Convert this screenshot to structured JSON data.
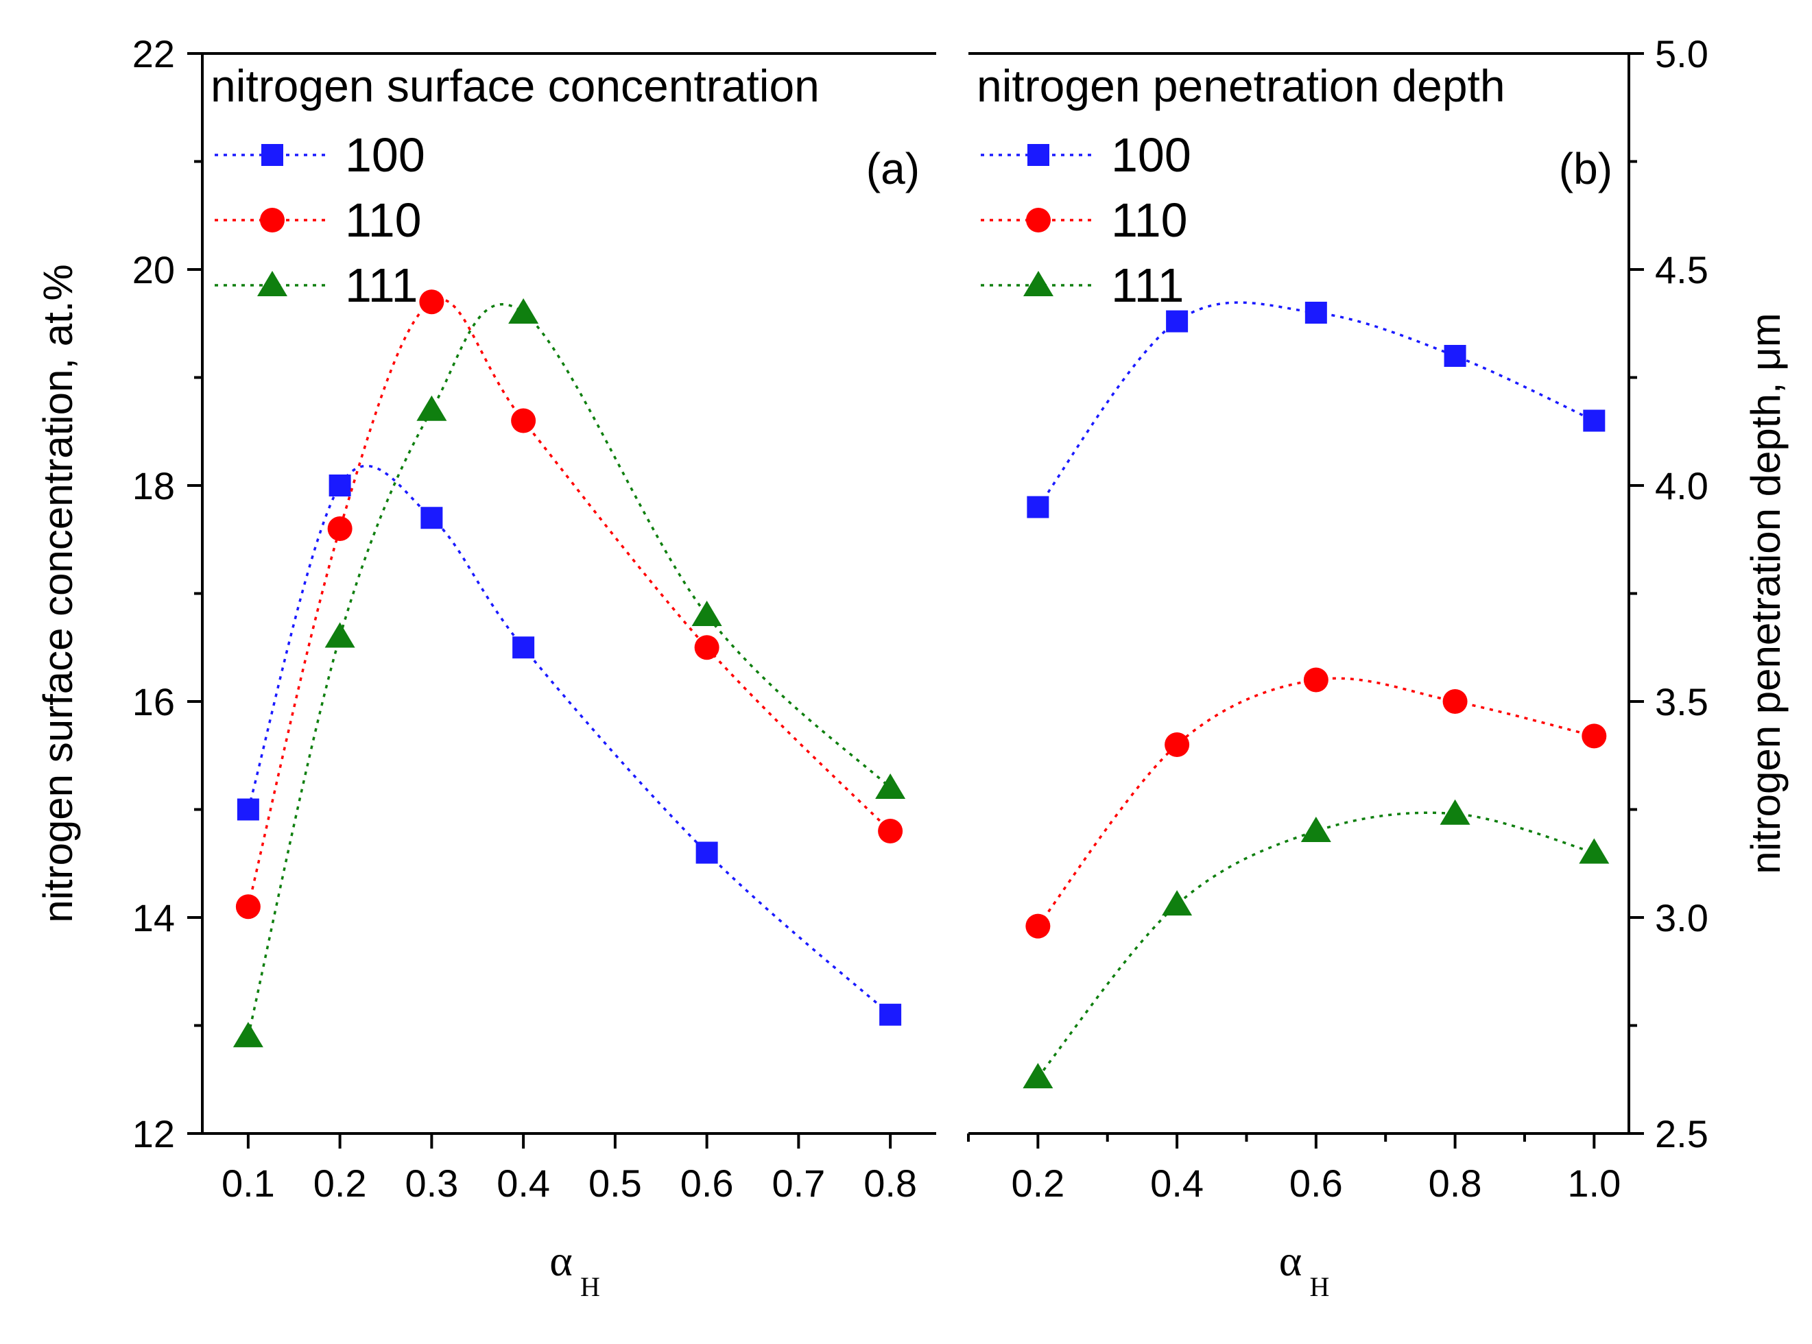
{
  "colors": {
    "s100": "#1a1aff",
    "s110": "#ff0000",
    "s111": "#0f7f0f",
    "axes": "#000000"
  },
  "chart_data": [
    {
      "type": "line",
      "title": "nitrogen surface concentration",
      "panel_label": "(a)",
      "ylabel": "nitrogen surface concentration, at.%",
      "xlabel_main": "α",
      "xlabel_sub": "H",
      "xlim": [
        0.05,
        0.85
      ],
      "ylim": [
        12,
        22
      ],
      "x_ticks": [
        0.1,
        0.2,
        0.3,
        0.4,
        0.5,
        0.6,
        0.7,
        0.8
      ],
      "x_tick_labels": [
        "0.1",
        "0.2",
        "0.3",
        "0.4",
        "0.5",
        "0.6",
        "0.7",
        "0.8"
      ],
      "y_ticks": [
        12,
        14,
        16,
        18,
        20,
        22
      ],
      "y_tick_labels": [
        "12",
        "14",
        "16",
        "18",
        "20",
        "22"
      ],
      "y_minor": [
        13,
        15,
        17,
        19,
        21
      ],
      "series": [
        {
          "name": "100",
          "marker": "square",
          "color": "#1a1aff",
          "x": [
            0.1,
            0.2,
            0.3,
            0.4,
            0.6,
            0.8
          ],
          "y": [
            15.0,
            18.0,
            17.7,
            16.5,
            14.6,
            13.1
          ]
        },
        {
          "name": "110",
          "marker": "circle",
          "color": "#ff0000",
          "x": [
            0.1,
            0.2,
            0.3,
            0.4,
            0.6,
            0.8
          ],
          "y": [
            14.1,
            17.6,
            19.7,
            18.6,
            16.5,
            14.8
          ]
        },
        {
          "name": "111",
          "marker": "triangle",
          "color": "#0f7f0f",
          "x": [
            0.1,
            0.2,
            0.3,
            0.4,
            0.6,
            0.8
          ],
          "y": [
            12.9,
            16.6,
            18.7,
            19.6,
            16.8,
            15.2
          ]
        }
      ]
    },
    {
      "type": "line",
      "title": "nitrogen penetration depth",
      "panel_label": "(b)",
      "ylabel": "nitrogen penetration depth, μm",
      "xlabel_main": "α",
      "xlabel_sub": "H",
      "xlim": [
        0.1,
        1.05
      ],
      "ylim": [
        2.5,
        5.0
      ],
      "x_ticks": [
        0.2,
        0.4,
        0.6,
        0.8,
        1.0
      ],
      "x_tick_labels": [
        "0.2",
        "0.4",
        "0.6",
        "0.8",
        "1.0"
      ],
      "x_minor": [
        0.1,
        0.3,
        0.5,
        0.7,
        0.9
      ],
      "y_ticks": [
        2.5,
        3.0,
        3.5,
        4.0,
        4.5,
        5.0
      ],
      "y_tick_labels": [
        "2.5",
        "3.0",
        "3.5",
        "4.0",
        "4.5",
        "5.0"
      ],
      "y_minor": [
        2.75,
        3.25,
        3.75,
        4.25,
        4.75
      ],
      "series": [
        {
          "name": "100",
          "marker": "square",
          "color": "#1a1aff",
          "x": [
            0.2,
            0.4,
            0.6,
            0.8,
            1.0
          ],
          "y": [
            3.95,
            4.38,
            4.4,
            4.3,
            4.15
          ]
        },
        {
          "name": "110",
          "marker": "circle",
          "color": "#ff0000",
          "x": [
            0.2,
            0.4,
            0.6,
            0.8,
            1.0
          ],
          "y": [
            2.98,
            3.4,
            3.55,
            3.5,
            3.42
          ]
        },
        {
          "name": "111",
          "marker": "triangle",
          "color": "#0f7f0f",
          "x": [
            0.2,
            0.4,
            0.6,
            0.8,
            1.0
          ],
          "y": [
            2.63,
            3.03,
            3.2,
            3.24,
            3.15
          ]
        }
      ]
    }
  ]
}
